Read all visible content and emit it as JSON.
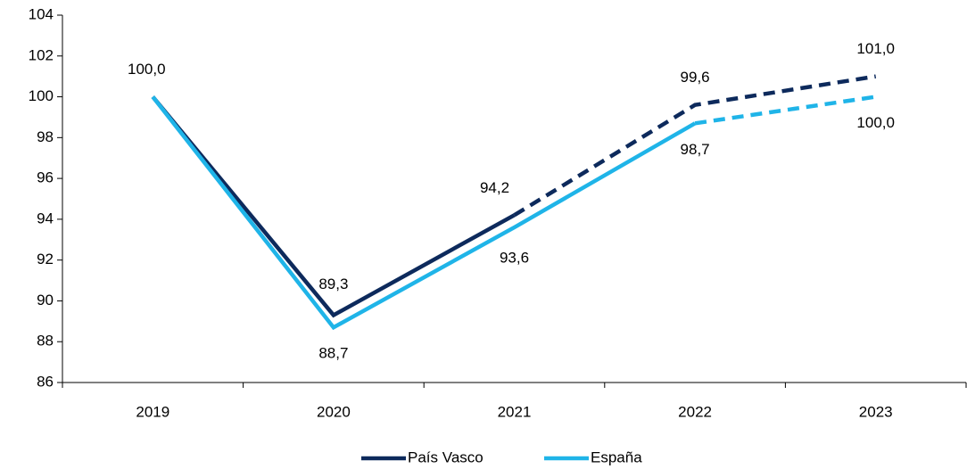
{
  "chart_data": {
    "type": "line",
    "categories": [
      "2019",
      "2020",
      "2021",
      "2022",
      "2023"
    ],
    "series": [
      {
        "name": "País Vasco",
        "color": "#0d2a5c",
        "values": [
          100.0,
          89.3,
          94.2,
          99.6,
          101.0
        ],
        "value_labels": [
          "100,0",
          "89,3",
          "94,2",
          "99,6",
          "101,0"
        ],
        "dashed_from": "2021",
        "label_position": "above"
      },
      {
        "name": "España",
        "color": "#1fb4e8",
        "values": [
          100.0,
          88.7,
          93.6,
          98.7,
          100.0
        ],
        "value_labels": [
          null,
          "88,7",
          "93,6",
          "98,7",
          "100,0"
        ],
        "dashed_from": "2022",
        "label_position": "below"
      }
    ],
    "ylim": [
      86,
      104
    ],
    "yticks": [
      86,
      88,
      90,
      92,
      94,
      96,
      98,
      100,
      102,
      104
    ],
    "grid": false,
    "legend": "bottom"
  }
}
